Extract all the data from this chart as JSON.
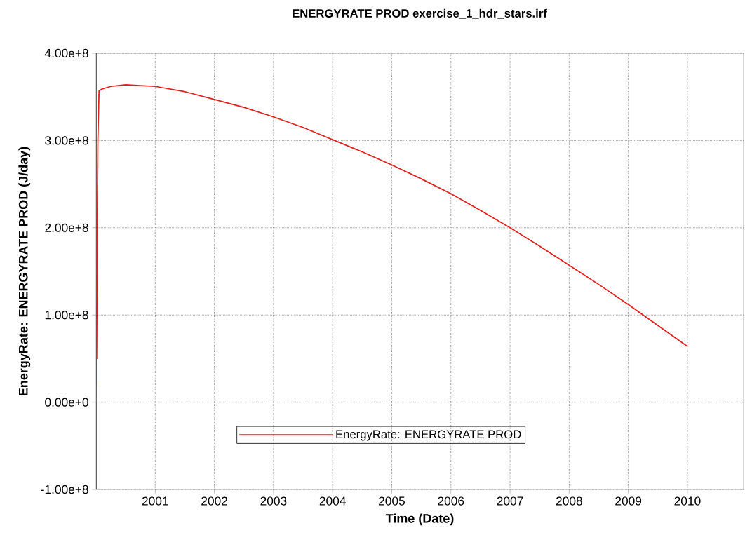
{
  "chart_data": {
    "type": "line",
    "title": "ENERGYRATE PROD exercise_1_hdr_stars.irf",
    "xlabel": "Time (Date)",
    "ylabel": "EnergyRate: ENERGYRATE PROD (J/day)",
    "x": [
      2000.0,
      2000.005,
      2000.01,
      2000.02,
      2000.03,
      2000.05,
      2000.1,
      2000.25,
      2000.5,
      2001,
      2001.5,
      2002,
      2002.5,
      2003,
      2003.5,
      2004,
      2004.5,
      2005,
      2005.5,
      2006,
      2006.5,
      2007,
      2007.5,
      2008,
      2008.5,
      2009,
      2009.5,
      2010
    ],
    "series": [
      {
        "name": "EnergyRate: ENERGYRATE PROD",
        "color": "#e0201c",
        "values": [
          20000000.0,
          110000000.0,
          50000000.0,
          200000000.0,
          300000000.0,
          357000000.0,
          359000000.0,
          362000000.0,
          364000000.0,
          362000000.0,
          356000000.0,
          347000000.0,
          338000000.0,
          327000000.0,
          315000000.0,
          301000000.0,
          287000000.0,
          272000000.0,
          256000000.0,
          239000000.0,
          220000000.0,
          200000000.0,
          179000000.0,
          157000000.0,
          135000000.0,
          112000000.0,
          88000000.0,
          64000000.0
        ]
      }
    ],
    "xlim": [
      2000.0,
      2010.95
    ],
    "xticks": [
      2001,
      2002,
      2003,
      2004,
      2005,
      2006,
      2007,
      2008,
      2009,
      2010
    ],
    "ylim": [
      -100000000.0,
      400000000.0
    ],
    "yticks": [
      {
        "value": -100000000.0,
        "label": "-1.00e+8"
      },
      {
        "value": 0,
        "label": "0.00e+0"
      },
      {
        "value": 100000000.0,
        "label": "1.00e+8"
      },
      {
        "value": 200000000.0,
        "label": "2.00e+8"
      },
      {
        "value": 300000000.0,
        "label": "3.00e+8"
      },
      {
        "value": 400000000.0,
        "label": "4.00e+8"
      }
    ],
    "grid": true,
    "legend": "bottom",
    "marker": "none",
    "line_style": "solid"
  }
}
